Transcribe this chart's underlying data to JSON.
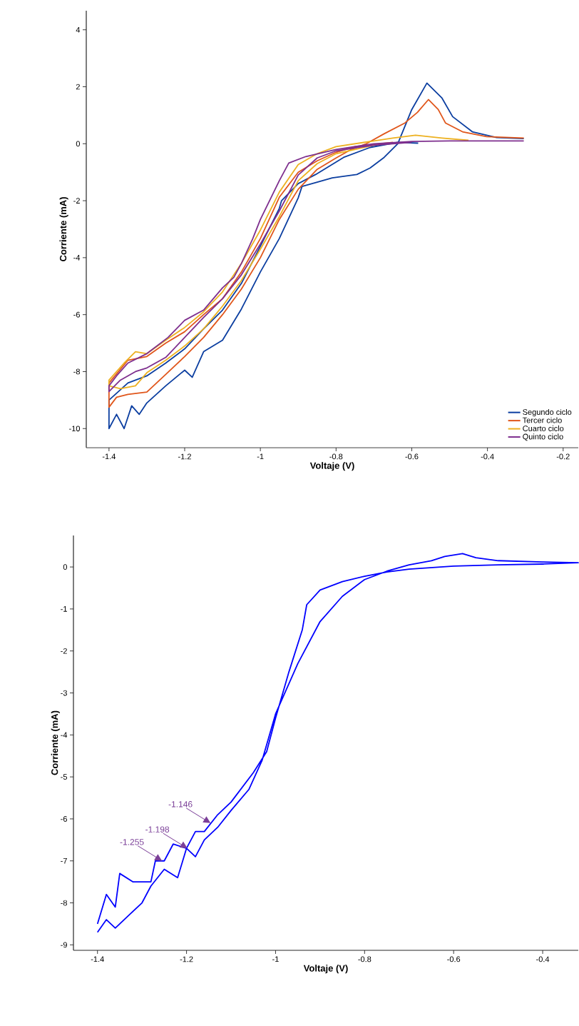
{
  "chart_data": [
    {
      "type": "line",
      "xlabel": "Voltaje (V)",
      "ylabel": "Corriente (mA)",
      "xlim": [
        -1.46,
        -0.16
      ],
      "ylim": [
        -10.67,
        4.67
      ],
      "xticks": [
        -1.4,
        -1.2,
        -1,
        -0.8,
        -0.6,
        -0.4,
        -0.2
      ],
      "yticks": [
        -10,
        -8,
        -6,
        -4,
        -2,
        0,
        2,
        4
      ],
      "grid": false,
      "legend": "bottom right",
      "series": [
        {
          "name": "Segundo ciclo",
          "color": "#0b3ea0",
          "x": [
            -0.583,
            -0.637,
            -0.71,
            -0.78,
            -0.854,
            -0.9,
            -0.944,
            -0.95,
            -1.0,
            -1.05,
            -1.1,
            -1.15,
            -1.2,
            -1.25,
            -1.3,
            -1.35,
            -1.4,
            -1.4,
            -1.38,
            -1.36,
            -1.34,
            -1.32,
            -1.3,
            -1.25,
            -1.2,
            -1.18,
            -1.15,
            -1.1,
            -1.05,
            -1.0,
            -0.95,
            -0.9,
            -0.89,
            -0.81,
            -0.745,
            -0.71,
            -0.673,
            -0.637,
            -0.6,
            -0.56,
            -0.52,
            -0.492,
            -0.44,
            -0.376,
            -0.304
          ],
          "values": [
            0.02,
            0.05,
            -0.13,
            -0.48,
            -1.08,
            -1.4,
            -2.0,
            -2.27,
            -3.6,
            -4.9,
            -5.84,
            -6.5,
            -7.2,
            -7.7,
            -8.15,
            -8.4,
            -9.0,
            -10.0,
            -9.5,
            -10.0,
            -9.2,
            -9.5,
            -9.1,
            -8.5,
            -7.95,
            -8.2,
            -7.3,
            -6.9,
            -5.8,
            -4.5,
            -3.33,
            -1.9,
            -1.5,
            -1.2,
            -1.08,
            -0.85,
            -0.48,
            0.0,
            1.2,
            2.13,
            1.6,
            0.95,
            0.42,
            0.22,
            0.18
          ]
        },
        {
          "name": "Tercer ciclo",
          "color": "#e0561b",
          "x": [
            -0.65,
            -0.75,
            -0.8,
            -0.85,
            -0.9,
            -0.95,
            -1.0,
            -1.05,
            -1.1,
            -1.15,
            -1.2,
            -1.25,
            -1.3,
            -1.35,
            -1.4,
            -1.4,
            -1.38,
            -1.35,
            -1.3,
            -1.25,
            -1.2,
            -1.15,
            -1.1,
            -1.05,
            -1.0,
            -0.95,
            -0.9,
            -0.85,
            -0.8,
            -0.76,
            -0.72,
            -0.673,
            -0.618,
            -0.585,
            -0.556,
            -0.53,
            -0.511,
            -0.466,
            -0.402,
            -0.304
          ],
          "values": [
            0.05,
            -0.1,
            -0.3,
            -0.6,
            -1.0,
            -1.88,
            -3.33,
            -4.5,
            -5.44,
            -6.0,
            -6.6,
            -7.0,
            -7.47,
            -7.6,
            -8.4,
            -9.25,
            -8.9,
            -8.8,
            -8.72,
            -8.1,
            -7.47,
            -6.8,
            -6.0,
            -5.1,
            -4.0,
            -2.66,
            -1.6,
            -0.9,
            -0.5,
            -0.2,
            0.0,
            0.35,
            0.73,
            1.1,
            1.55,
            1.2,
            0.73,
            0.42,
            0.25,
            0.2
          ]
        },
        {
          "name": "Cuarto ciclo",
          "color": "#edb120",
          "x": [
            -0.45,
            -0.52,
            -0.59,
            -0.65,
            -0.7,
            -0.8,
            -0.85,
            -0.9,
            -0.95,
            -1.0,
            -1.05,
            -1.1,
            -1.15,
            -1.2,
            -1.25,
            -1.3,
            -1.33,
            -1.36,
            -1.4,
            -1.4,
            -1.37,
            -1.33,
            -1.3,
            -1.25,
            -1.2,
            -1.15,
            -1.1,
            -1.05,
            -1.0,
            -0.95,
            -0.9,
            -0.85,
            -0.8,
            -0.7
          ],
          "values": [
            0.12,
            0.2,
            0.3,
            0.2,
            0.1,
            -0.1,
            -0.35,
            -0.73,
            -1.7,
            -3.03,
            -4.2,
            -5.2,
            -5.9,
            -6.45,
            -6.9,
            -7.37,
            -7.3,
            -7.7,
            -8.3,
            -8.5,
            -8.6,
            -8.5,
            -8.04,
            -7.6,
            -7.1,
            -6.5,
            -5.7,
            -4.8,
            -3.7,
            -2.56,
            -1.3,
            -0.7,
            -0.35,
            -0.05
          ]
        },
        {
          "name": "Quinto ciclo",
          "color": "#7e2f8e",
          "x": [
            -0.304,
            -0.4,
            -0.5,
            -0.6,
            -0.7,
            -0.8,
            -0.88,
            -0.925,
            -0.95,
            -1.0,
            -1.02,
            -1.05,
            -1.07,
            -1.1,
            -1.15,
            -1.2,
            -1.244,
            -1.3,
            -1.35,
            -1.38,
            -1.4,
            -1.4,
            -1.37,
            -1.33,
            -1.3,
            -1.25,
            -1.2,
            -1.15,
            -1.1,
            -1.05,
            -1.0,
            -0.95,
            -0.9,
            -0.85,
            -0.8,
            -0.7,
            -0.6
          ],
          "values": [
            0.1,
            0.1,
            0.1,
            0.08,
            0.0,
            -0.2,
            -0.45,
            -0.68,
            -1.3,
            -2.66,
            -3.33,
            -4.2,
            -4.69,
            -5.06,
            -5.84,
            -6.2,
            -6.8,
            -7.37,
            -7.7,
            -8.15,
            -8.5,
            -8.7,
            -8.3,
            -8.0,
            -7.87,
            -7.5,
            -6.8,
            -6.1,
            -5.44,
            -4.6,
            -3.52,
            -2.36,
            -1.1,
            -0.5,
            -0.25,
            -0.05,
            0.05
          ]
        }
      ]
    },
    {
      "type": "line",
      "xlabel": "Voltaje (V)",
      "ylabel": "Corriente (mA)",
      "xlim": [
        -1.454,
        -0.32
      ],
      "ylim": [
        -9.13,
        0.75
      ],
      "xticks": [
        -1.4,
        -1.2,
        -1,
        -0.8,
        -0.6,
        -0.4
      ],
      "yticks": [
        -9,
        -8,
        -7,
        -6,
        -5,
        -4,
        -3,
        -2,
        -1,
        0
      ],
      "grid": false,
      "annotations": [
        {
          "text": "-1.146",
          "x": -1.146,
          "y": -6.1
        },
        {
          "text": "-1.198",
          "x": -1.198,
          "y": -6.7
        },
        {
          "text": "-1.255",
          "x": -1.255,
          "y": -7.0
        }
      ],
      "series": [
        {
          "color": "#0000ff",
          "x": [
            -1.4,
            -1.38,
            -1.36,
            -1.35,
            -1.32,
            -1.28,
            -1.27,
            -1.25,
            -1.23,
            -1.2,
            -1.18,
            -1.16,
            -1.13,
            -1.1,
            -1.05,
            -1.02,
            -1.0,
            -0.97,
            -0.94,
            -0.93,
            -0.9,
            -0.85,
            -0.8,
            -0.75,
            -0.7,
            -0.6,
            -0.5,
            -0.4,
            -0.32,
            -0.4,
            -0.5,
            -0.55,
            -0.58,
            -0.62,
            -0.65,
            -0.7,
            -0.75,
            -0.8,
            -0.85,
            -0.9,
            -0.95,
            -1.0,
            -1.03,
            -1.06,
            -1.1,
            -1.13,
            -1.16,
            -1.18,
            -1.2,
            -1.22,
            -1.25,
            -1.28,
            -1.3,
            -1.33,
            -1.36,
            -1.38,
            -1.4
          ],
          "values": [
            -8.5,
            -7.8,
            -8.1,
            -7.3,
            -7.5,
            -7.5,
            -7.0,
            -7.0,
            -6.6,
            -6.7,
            -6.3,
            -6.3,
            -5.9,
            -5.6,
            -4.9,
            -4.4,
            -3.6,
            -2.5,
            -1.5,
            -0.9,
            -0.55,
            -0.35,
            -0.22,
            -0.12,
            -0.05,
            0.02,
            0.05,
            0.07,
            0.1,
            0.12,
            0.15,
            0.22,
            0.32,
            0.25,
            0.15,
            0.05,
            -0.1,
            -0.3,
            -0.7,
            -1.3,
            -2.3,
            -3.5,
            -4.6,
            -5.3,
            -5.8,
            -6.2,
            -6.5,
            -6.9,
            -6.7,
            -7.4,
            -7.2,
            -7.6,
            -8.0,
            -8.3,
            -8.6,
            -8.4,
            -8.7
          ]
        }
      ]
    }
  ]
}
